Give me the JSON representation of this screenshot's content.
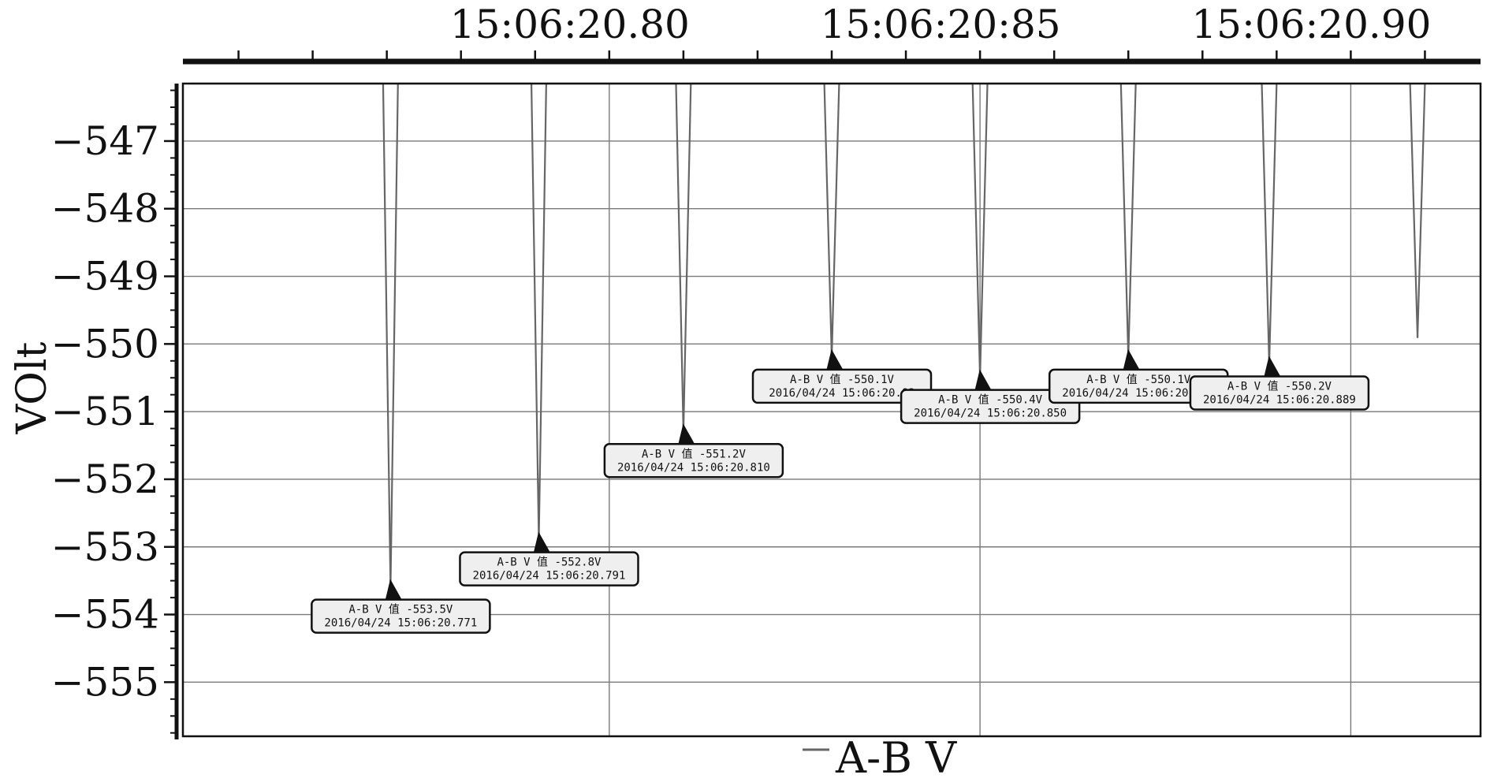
{
  "chart_data": {
    "type": "line",
    "ylabel": "VOlt",
    "legend": {
      "label": "A-B V",
      "placement": "bottom-center"
    },
    "x_axis": {
      "position": "top",
      "unit": "seconds after 15:06:20",
      "range": [
        20.7425,
        20.9175
      ],
      "tick_labels": [
        {
          "x": 20.8,
          "label": "15:06:20.80"
        },
        {
          "x": 20.85,
          "label": "15:06:20:85"
        },
        {
          "x": 20.9,
          "label": "15:06:20.90"
        }
      ],
      "minor_ticks": [
        20.75,
        20.76,
        20.77,
        20.78,
        20.79,
        20.8,
        20.81,
        20.82,
        20.83,
        20.84,
        20.85,
        20.86,
        20.87,
        20.88,
        20.89,
        20.9,
        20.91
      ]
    },
    "y_axis": {
      "range": [
        -555.8,
        -546.15
      ],
      "ticks": [
        -547,
        -548,
        -549,
        -550,
        -551,
        -552,
        -553,
        -554,
        -555
      ],
      "tick_labels": [
        "−547",
        "−548",
        "−549",
        "−550",
        "−551",
        "−552",
        "−553",
        "−554",
        "−555"
      ]
    },
    "grid": true,
    "series": [
      {
        "name": "A-B V",
        "color": "#666666",
        "points": [
          {
            "x": 20.7435,
            "y": -546.0
          },
          {
            "x": 20.7695,
            "y": -546.0
          },
          {
            "x": 20.7705,
            "y": -553.6
          },
          {
            "x": 20.7715,
            "y": -546.0
          },
          {
            "x": 20.7895,
            "y": -546.0
          },
          {
            "x": 20.7905,
            "y": -552.9
          },
          {
            "x": 20.7915,
            "y": -546.0
          },
          {
            "x": 20.809,
            "y": -546.0
          },
          {
            "x": 20.81,
            "y": -551.3
          },
          {
            "x": 20.811,
            "y": -546.0
          },
          {
            "x": 20.829,
            "y": -546.0
          },
          {
            "x": 20.83,
            "y": -550.2
          },
          {
            "x": 20.831,
            "y": -546.0
          },
          {
            "x": 20.849,
            "y": -546.0
          },
          {
            "x": 20.85,
            "y": -550.5
          },
          {
            "x": 20.851,
            "y": -546.0
          },
          {
            "x": 20.869,
            "y": -546.0
          },
          {
            "x": 20.87,
            "y": -550.2
          },
          {
            "x": 20.871,
            "y": -546.0
          },
          {
            "x": 20.888,
            "y": -546.0
          },
          {
            "x": 20.889,
            "y": -550.3
          },
          {
            "x": 20.89,
            "y": -546.0
          },
          {
            "x": 20.908,
            "y": -546.0
          },
          {
            "x": 20.909,
            "y": -549.9
          },
          {
            "x": 20.91,
            "y": -546.0
          }
        ]
      }
    ],
    "annotations": [
      {
        "x": 20.7705,
        "y": -553.5,
        "line1": "A-B V 值 -553.5V",
        "line2": "2016/04/24 15:06:20.771"
      },
      {
        "x": 20.7905,
        "y": -552.8,
        "line1": "A-B V 值 -552.8V",
        "line2": "2016/04/24 15:06:20.791"
      },
      {
        "x": 20.81,
        "y": -551.2,
        "line1": "A-B V 值 -551.2V",
        "line2": "2016/04/24 15:06:20.810"
      },
      {
        "x": 20.83,
        "y": -550.1,
        "line1": "A-B V 值 -550.1V",
        "line2": "2016/04/24 15:06:20.83"
      },
      {
        "x": 20.85,
        "y": -550.4,
        "line1": "A-B V 值 -550.4V",
        "line2": "2016/04/24 15:06:20.850"
      },
      {
        "x": 20.87,
        "y": -550.1,
        "line1": "A-B V 值 -550.1V",
        "line2": "2016/04/24 15:06:20.870"
      },
      {
        "x": 20.889,
        "y": -550.2,
        "line1": "A-B V 值 -550.2V",
        "line2": "2016/04/24 15:06:20.889"
      }
    ]
  }
}
